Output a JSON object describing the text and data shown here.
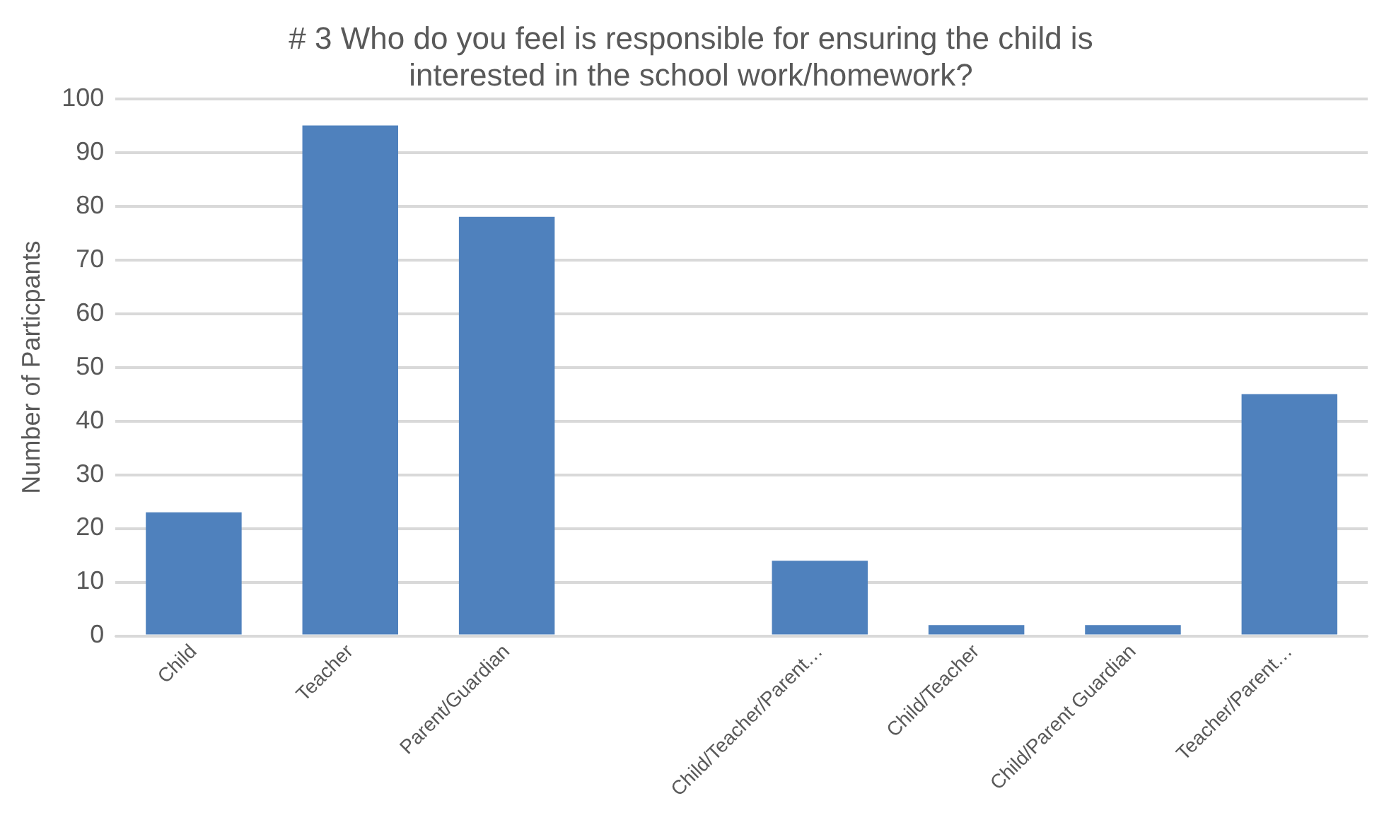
{
  "chart_data": {
    "type": "bar",
    "title": "# 3 Who do you feel is responsible for ensuring the child is interested in the school work/homework?",
    "ylabel": "Number of Particpants",
    "categories": [
      "Child",
      "Teacher",
      "Parent/Guardian",
      null,
      "Child/Teacher/Parent…",
      "Child/Teacher",
      "Child/Parent Guardian",
      "Teacher/Parent…"
    ],
    "values": [
      23,
      95,
      78,
      null,
      14,
      2,
      2,
      45
    ],
    "color": "#4f81bd",
    "ylim": [
      0,
      100
    ],
    "yticks": [
      0,
      10,
      20,
      30,
      40,
      50,
      60,
      70,
      80,
      90,
      100
    ],
    "grid": "y"
  }
}
